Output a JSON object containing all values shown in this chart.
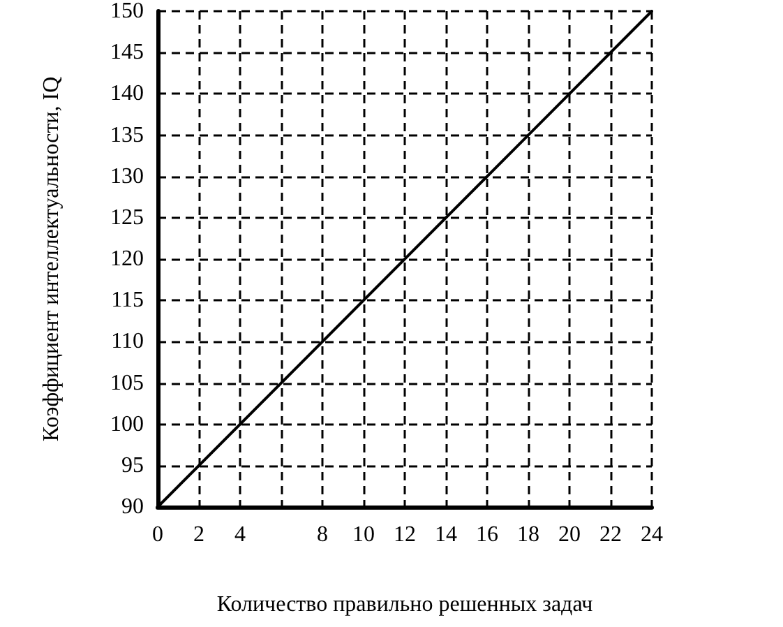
{
  "chart_data": {
    "type": "line",
    "xlabel": "Количество правильно решенных задач",
    "ylabel": "Коэффициент интеллектуальности, IQ",
    "x": [
      0,
      24
    ],
    "series": [
      {
        "color": "#000000",
        "values": [
          90,
          150
        ]
      }
    ],
    "xlim": [
      0,
      24
    ],
    "xticks": [
      0,
      2,
      4,
      {
        "value": 6,
        "label": null
      },
      8,
      10,
      12,
      14,
      16,
      18,
      20,
      22,
      24
    ],
    "ylim": [
      90,
      150
    ],
    "yticks": [
      90,
      95,
      100,
      105,
      110,
      115,
      120,
      125,
      130,
      135,
      140,
      145,
      150
    ],
    "grid": true,
    "marker": "none",
    "line_style": "solid"
  }
}
